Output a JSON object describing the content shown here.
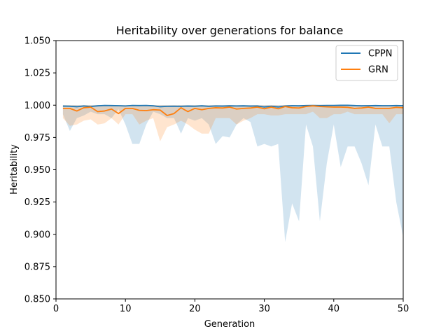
{
  "chart_data": {
    "type": "line",
    "title": "Heritability over generations for balance",
    "xlabel": "Generation",
    "ylabel": "Heritability",
    "xlim": [
      0,
      50
    ],
    "ylim": [
      0.85,
      1.05
    ],
    "xticks": [
      0,
      10,
      20,
      30,
      40,
      50
    ],
    "xtick_labels": [
      "0",
      "10",
      "20",
      "30",
      "40",
      "50"
    ],
    "yticks": [
      0.85,
      0.875,
      0.9,
      0.925,
      0.95,
      0.975,
      1.0,
      1.025,
      1.05
    ],
    "ytick_labels": [
      "0.850",
      "0.875",
      "0.900",
      "0.925",
      "0.950",
      "0.975",
      "1.000",
      "1.025",
      "1.050"
    ],
    "grid": false,
    "legend_position": "top-right",
    "x": [
      1,
      2,
      3,
      4,
      5,
      6,
      7,
      8,
      9,
      10,
      11,
      12,
      13,
      14,
      15,
      16,
      17,
      18,
      19,
      20,
      21,
      22,
      23,
      24,
      25,
      26,
      27,
      28,
      29,
      30,
      31,
      32,
      33,
      34,
      35,
      36,
      37,
      38,
      39,
      40,
      41,
      42,
      43,
      44,
      45,
      46,
      47,
      48,
      49,
      50
    ],
    "series": [
      {
        "name": "CPPN",
        "color": "#1f77b4",
        "values": [
          0.9993,
          0.9992,
          0.9988,
          0.9994,
          0.999,
          0.9995,
          0.9998,
          0.9997,
          0.9996,
          0.9994,
          0.9998,
          0.9997,
          0.9998,
          0.9995,
          0.9988,
          0.9991,
          0.9992,
          0.9991,
          0.9993,
          0.9992,
          0.9995,
          0.9991,
          0.9994,
          0.9993,
          0.9995,
          0.9994,
          0.9995,
          0.9993,
          0.9994,
          0.9986,
          0.9992,
          0.9986,
          0.9994,
          0.9996,
          0.9995,
          0.9997,
          0.9998,
          0.9997,
          0.9998,
          0.9998,
          0.9999,
          0.9999,
          0.9997,
          0.9995,
          0.9996,
          0.9997,
          0.9996,
          0.9996,
          0.9997,
          0.9996
        ],
        "band_lower": [
          0.993,
          0.98,
          0.99,
          0.992,
          0.995,
          0.993,
          0.993,
          0.99,
          0.997,
          0.985,
          0.97,
          0.97,
          0.985,
          0.995,
          0.993,
          0.99,
          0.99,
          0.978,
          0.99,
          0.988,
          0.99,
          0.985,
          0.97,
          0.976,
          0.975,
          0.985,
          0.99,
          0.987,
          0.968,
          0.97,
          0.968,
          0.97,
          0.894,
          0.924,
          0.91,
          0.985,
          0.968,
          0.91,
          0.955,
          0.985,
          0.952,
          0.968,
          0.968,
          0.955,
          0.938,
          0.985,
          0.968,
          0.968,
          0.925,
          0.898
        ],
        "band_upper": [
          1.0,
          1.0,
          1.0,
          1.0,
          1.0,
          1.0,
          1.0,
          1.0,
          1.0,
          1.0,
          1.0,
          1.0,
          1.0,
          1.0,
          1.0,
          1.0,
          1.0,
          1.0,
          1.0,
          1.0,
          1.0,
          1.0,
          1.0,
          1.0,
          1.0,
          1.0,
          1.0,
          1.0,
          1.0,
          1.0,
          1.0,
          1.0,
          1.0,
          1.0,
          1.0,
          1.0,
          1.0,
          1.0,
          1.0,
          1.0,
          1.0,
          1.0,
          1.0,
          1.0,
          1.0,
          1.0,
          1.0,
          1.0,
          1.0,
          1.0
        ]
      },
      {
        "name": "GRN",
        "color": "#ff7f0e",
        "values": [
          0.9975,
          0.9975,
          0.9955,
          0.998,
          0.9985,
          0.995,
          0.9955,
          0.997,
          0.9935,
          0.9975,
          0.9975,
          0.996,
          0.9958,
          0.9965,
          0.9962,
          0.992,
          0.9935,
          0.998,
          0.995,
          0.9975,
          0.9965,
          0.9975,
          0.998,
          0.9978,
          0.9985,
          0.997,
          0.9975,
          0.9978,
          0.9985,
          0.9972,
          0.9985,
          0.9972,
          0.999,
          0.998,
          0.9978,
          0.999,
          0.9995,
          0.999,
          0.9987,
          0.9985,
          0.9985,
          0.9983,
          0.9975,
          0.9978,
          0.9985,
          0.9975,
          0.9975,
          0.9975,
          0.9983,
          0.998
        ],
        "band_lower": [
          0.99,
          0.984,
          0.985,
          0.988,
          0.989,
          0.985,
          0.986,
          0.99,
          0.985,
          0.993,
          0.993,
          0.985,
          0.988,
          0.99,
          0.972,
          0.983,
          0.985,
          0.988,
          0.985,
          0.981,
          0.978,
          0.978,
          0.99,
          0.99,
          0.99,
          0.985,
          0.988,
          0.99,
          0.993,
          0.993,
          0.992,
          0.992,
          0.993,
          0.993,
          0.993,
          0.993,
          0.995,
          0.99,
          0.99,
          0.993,
          0.993,
          0.995,
          0.993,
          0.993,
          0.993,
          0.993,
          0.993,
          0.986,
          0.993,
          0.993
        ],
        "band_upper": [
          1.0,
          1.0,
          1.0,
          1.0,
          1.0,
          1.0,
          1.0,
          1.0,
          1.0,
          1.0,
          1.0,
          1.0,
          1.0,
          1.0,
          1.0,
          1.0,
          1.0,
          1.0,
          1.0,
          1.0,
          1.0,
          1.0,
          1.0,
          1.0,
          1.0,
          1.0,
          1.0,
          1.0,
          1.0,
          1.0,
          1.0,
          1.0,
          1.0,
          1.0,
          1.0,
          1.0,
          1.0,
          1.0,
          1.0,
          1.0,
          1.0,
          1.0,
          1.0,
          1.0,
          1.0,
          1.0,
          1.0,
          1.0,
          1.0,
          1.0
        ]
      }
    ]
  }
}
